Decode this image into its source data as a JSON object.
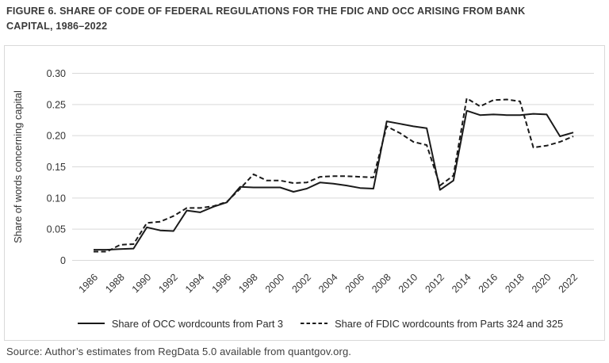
{
  "figure": {
    "title_line1": "FIGURE 6. SHARE OF CODE OF FEDERAL REGULATIONS FOR THE FDIC AND OCC ARISING FROM BANK",
    "title_line2": "CAPITAL, 1986–2022"
  },
  "source": "Source: Author’s estimates from RegData 5.0 available from quantgov.org.",
  "colors": {
    "line": "#1a1a1a",
    "grid": "#d9d9d9",
    "box_border": "#d9d9d9",
    "axis_text": "#333333",
    "title_text": "#3a3a3a"
  },
  "chart_data": {
    "type": "line",
    "title": "FIGURE 6. SHARE OF CODE OF FEDERAL REGULATIONS FOR THE FDIC AND OCC ARISING FROM BANK CAPITAL, 1986–2022",
    "xlabel": "",
    "ylabel": "Share of words concerning capital",
    "ylim": [
      0,
      0.3
    ],
    "yticks": [
      0,
      0.05,
      0.1,
      0.15,
      0.2,
      0.25,
      0.3
    ],
    "ytick_labels": [
      "0",
      "0.05",
      "0.10",
      "0.15",
      "0.20",
      "0.25",
      "0.30"
    ],
    "grid": "horizontal",
    "legend_position": "bottom",
    "x": [
      1986,
      1987,
      1988,
      1989,
      1990,
      1991,
      1992,
      1993,
      1994,
      1995,
      1996,
      1997,
      1998,
      1999,
      2000,
      2001,
      2002,
      2003,
      2004,
      2005,
      2006,
      2007,
      2008,
      2009,
      2010,
      2011,
      2012,
      2013,
      2014,
      2015,
      2016,
      2017,
      2018,
      2019,
      2020,
      2021,
      2022
    ],
    "xtick_labels": [
      "1986",
      "1988",
      "1990",
      "1992",
      "1994",
      "1996",
      "1998",
      "2000",
      "2002",
      "2004",
      "2006",
      "2008",
      "2010",
      "2012",
      "2014",
      "2016",
      "2018",
      "2020",
      "2022"
    ],
    "series": [
      {
        "name": "Share of OCC wordcounts from Part 3",
        "style": "solid",
        "values": [
          0.017,
          0.017,
          0.018,
          0.019,
          0.053,
          0.048,
          0.047,
          0.08,
          0.077,
          0.086,
          0.093,
          0.118,
          0.117,
          0.117,
          0.117,
          0.11,
          0.115,
          0.125,
          0.123,
          0.12,
          0.116,
          0.115,
          0.223,
          0.219,
          0.215,
          0.212,
          0.113,
          0.128,
          0.24,
          0.233,
          0.234,
          0.233,
          0.233,
          0.235,
          0.234,
          0.199,
          0.205
        ]
      },
      {
        "name": "Share of FDIC wordcounts from Parts 324 and 325",
        "style": "dashed",
        "values": [
          0.014,
          0.014,
          0.025,
          0.026,
          0.06,
          0.062,
          0.071,
          0.084,
          0.084,
          0.087,
          0.094,
          0.115,
          0.138,
          0.128,
          0.128,
          0.124,
          0.125,
          0.134,
          0.135,
          0.135,
          0.134,
          0.133,
          0.215,
          0.204,
          0.19,
          0.185,
          0.12,
          0.136,
          0.26,
          0.247,
          0.257,
          0.258,
          0.255,
          0.181,
          0.184,
          0.19,
          0.199
        ]
      }
    ]
  }
}
